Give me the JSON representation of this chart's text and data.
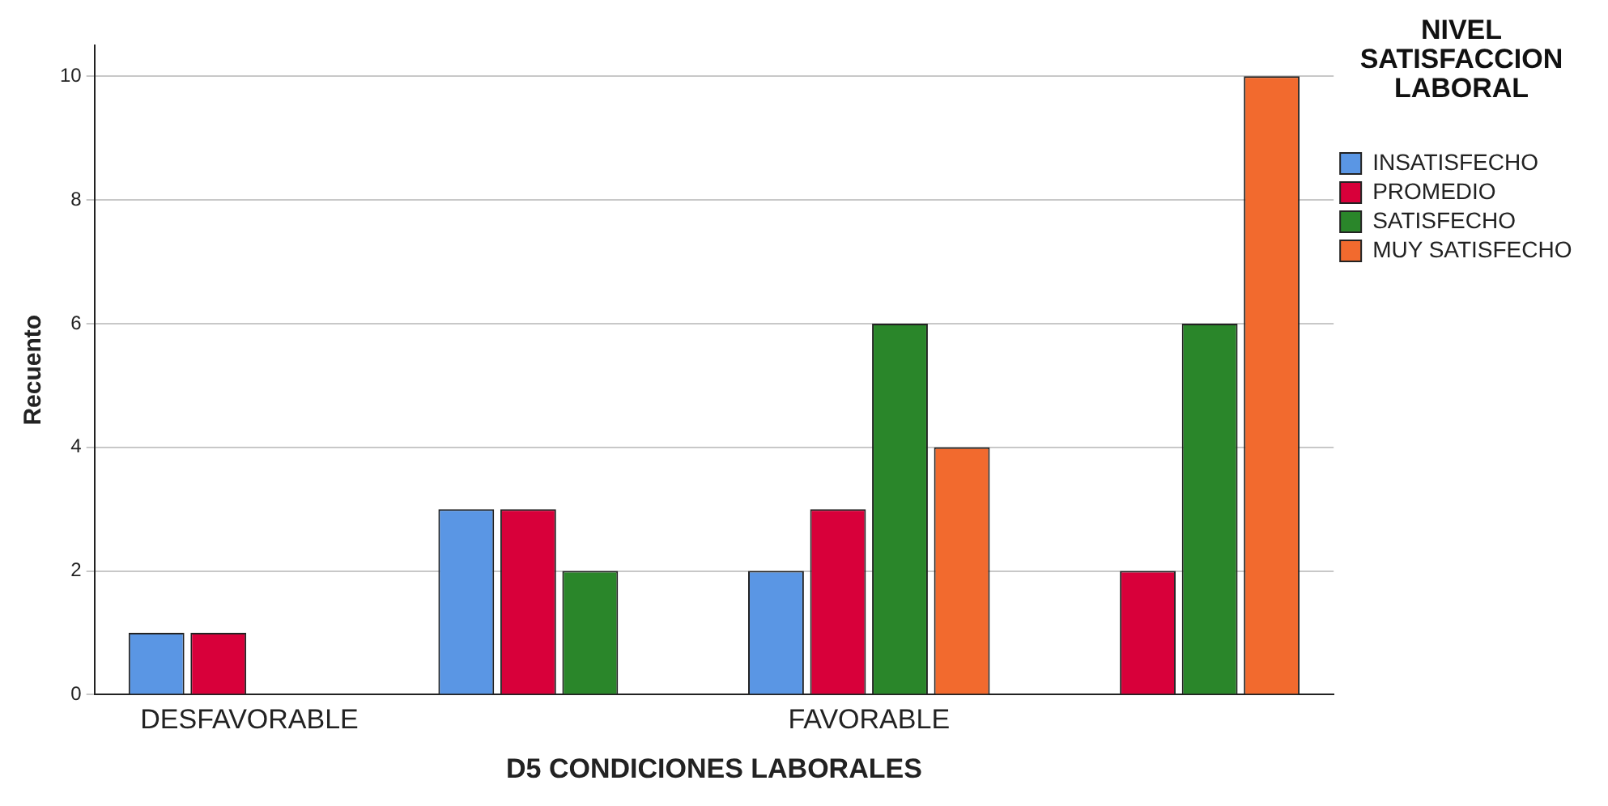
{
  "chart_data": {
    "type": "bar",
    "xlabel": "D5 CONDICIONES LABORALES",
    "ylabel": "Recuento",
    "legend_title": "NIVEL SATISFACCION LABORAL",
    "categories": [
      "DESFAVORABLE",
      null,
      "FAVORABLE",
      null
    ],
    "series": [
      {
        "name": "INSATISFECHO",
        "color": "#5a96e4",
        "values": [
          1,
          3,
          2,
          null
        ]
      },
      {
        "name": "PROMEDIO",
        "color": "#d8003a",
        "values": [
          1,
          3,
          3,
          2
        ]
      },
      {
        "name": "SATISFECHO",
        "color": "#2a862a",
        "values": [
          null,
          2,
          6,
          6
        ]
      },
      {
        "name": "MUY SATISFECHO",
        "color": "#f26a2e",
        "values": [
          null,
          null,
          4,
          10
        ]
      }
    ],
    "ylim": [
      0,
      10.5
    ],
    "yticks": [
      0,
      2,
      4,
      6,
      8,
      10
    ],
    "grid": "y",
    "legend": "top right"
  }
}
